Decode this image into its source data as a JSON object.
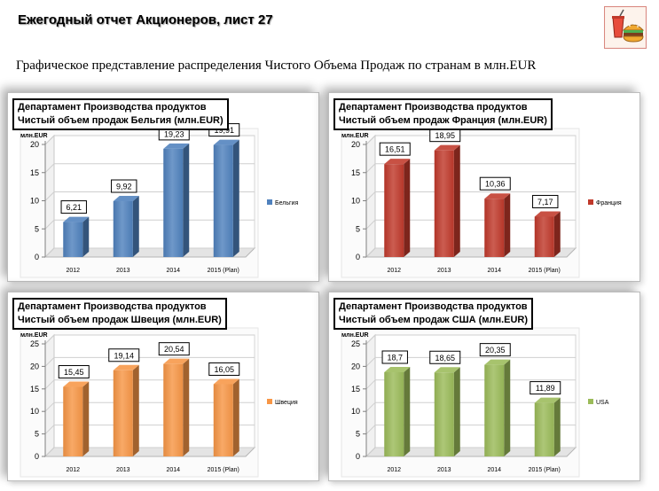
{
  "header": {
    "title": "Ежегодный отчет Акционеров, лист 27",
    "subtitle": "Графическое представление распределения Чистого Объема Продаж по странам в млн.EUR",
    "logo_icon": "fast-food-icon"
  },
  "chart_data": [
    {
      "type": "bar",
      "heading": [
        "Департамент Производства продуктов",
        "Чистый объем продаж Бельгия (млн.EUR)"
      ],
      "unit": "млн.EUR",
      "categories": [
        "2012",
        "2013",
        "2014",
        "2015 (Plan)"
      ],
      "series": [
        {
          "name": "Бельгия",
          "values": [
            6.21,
            9.92,
            19.23,
            19.91
          ],
          "labels": [
            "6,21",
            "9,92",
            "19,23",
            "19,91"
          ],
          "color": "#4f81bd"
        }
      ],
      "ylim": [
        0,
        20
      ],
      "yticks": [
        "0",
        "5",
        "10",
        "15",
        "20"
      ],
      "grid": true,
      "legend": "right"
    },
    {
      "type": "bar",
      "heading": [
        "Департамент Производства продуктов",
        "Чистый объем продаж Франция (млн.EUR)"
      ],
      "unit": "млн.EUR",
      "categories": [
        "2012",
        "2013",
        "2014",
        "2015 (Plan)"
      ],
      "series": [
        {
          "name": "Франция",
          "values": [
            16.51,
            18.95,
            10.36,
            7.17
          ],
          "labels": [
            "16,51",
            "18,95",
            "10,36",
            "7,17"
          ],
          "color": "#c0392b"
        }
      ],
      "ylim": [
        0,
        20
      ],
      "yticks": [
        "0",
        "5",
        "10",
        "15",
        "20"
      ],
      "grid": true,
      "legend": "right"
    },
    {
      "type": "bar",
      "heading": [
        "Департамент Производства продуктов",
        "Чистый объем продаж Швеция (млн.EUR)"
      ],
      "unit": "млн.EUR",
      "categories": [
        "2012",
        "2013",
        "2014",
        "2015 (Plan)"
      ],
      "series": [
        {
          "name": "Швеция",
          "values": [
            15.45,
            19.14,
            20.54,
            16.05
          ],
          "labels": [
            "15,45",
            "19,14",
            "20,54",
            "16,05"
          ],
          "color": "#f79646"
        }
      ],
      "ylim": [
        0,
        25
      ],
      "yticks": [
        "0",
        "5",
        "10",
        "15",
        "20",
        "25"
      ],
      "grid": true,
      "legend": "right"
    },
    {
      "type": "bar",
      "heading": [
        "Департамент Производства продуктов",
        "Чистый объем продаж США (млн.EUR)"
      ],
      "unit": "млн.EUR",
      "categories": [
        "2012",
        "2013",
        "2014",
        "2015 (Plan)"
      ],
      "series": [
        {
          "name": "USA",
          "values": [
            18.7,
            18.65,
            20.35,
            11.89
          ],
          "labels": [
            "18,7",
            "18,65",
            "20,35",
            "11,89"
          ],
          "color": "#9bbb59"
        }
      ],
      "ylim": [
        0,
        25
      ],
      "yticks": [
        "0",
        "5",
        "10",
        "15",
        "20",
        "25"
      ],
      "grid": true,
      "legend": "right"
    }
  ]
}
